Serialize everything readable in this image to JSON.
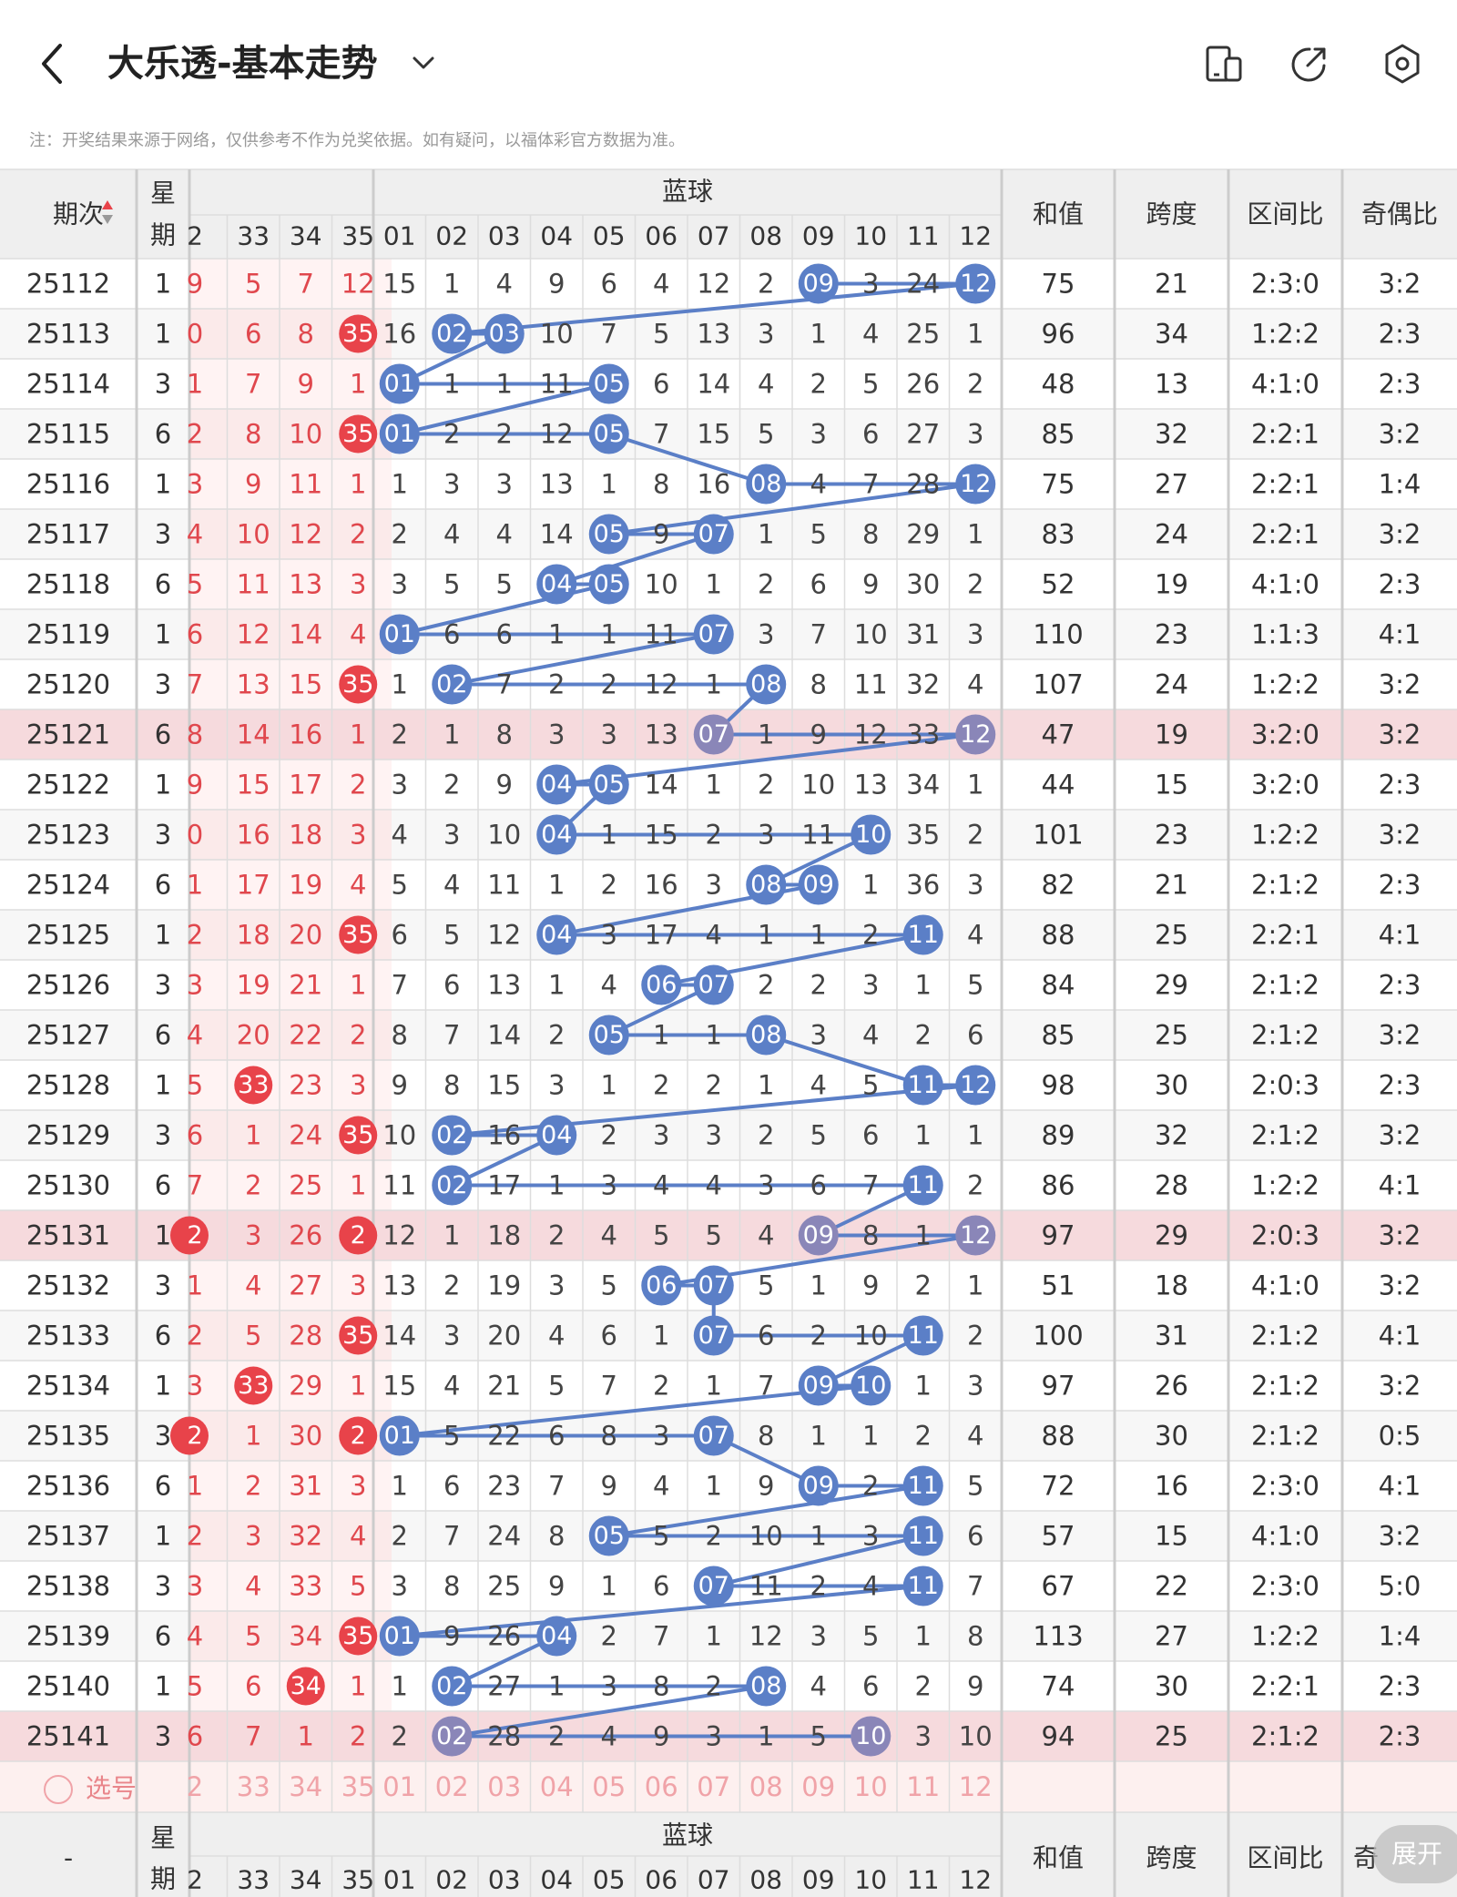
{
  "header": {
    "title": "大乐透-基本走势",
    "icons": [
      "back-arrow-icon",
      "chevron-down-icon",
      "device-icon",
      "share-icon",
      "settings-icon"
    ]
  },
  "note": "注：开奖结果来源于网络，仅供参考不作为兑奖依据。如有疑问，以福体彩官方数据为准。",
  "table": {
    "headers": {
      "period": "期次",
      "weekday_1": "星",
      "weekday_2": "期",
      "blue_group": "蓝球",
      "sum": "和值",
      "span": "跨度",
      "zone_ratio": "区间比",
      "odd_even_ratio": "奇偶比"
    },
    "front_columns": [
      "2",
      "33",
      "34",
      "35"
    ],
    "blue_columns": [
      "01",
      "02",
      "03",
      "04",
      "05",
      "06",
      "07",
      "08",
      "09",
      "10",
      "11",
      "12"
    ],
    "rows": [
      {
        "period": "25112",
        "week": "1",
        "front": [
          "9",
          "5",
          "7",
          "12"
        ],
        "front_hit": [],
        "blue": [
          "15",
          "1",
          "4",
          "9",
          "6",
          "4",
          "12",
          "2",
          "09",
          "3",
          "24",
          "12"
        ],
        "blue_hit": [
          9,
          12
        ],
        "sum": "75",
        "span": "21",
        "zone": "2:3:0",
        "oe": "3:2",
        "highlight": false
      },
      {
        "period": "25113",
        "week": "1",
        "front": [
          "0",
          "6",
          "8",
          "35"
        ],
        "front_hit": [
          35
        ],
        "blue": [
          "16",
          "02",
          "03",
          "10",
          "7",
          "5",
          "13",
          "3",
          "1",
          "4",
          "25",
          "1"
        ],
        "blue_hit": [
          2,
          3
        ],
        "sum": "96",
        "span": "34",
        "zone": "1:2:2",
        "oe": "2:3",
        "highlight": false
      },
      {
        "period": "25114",
        "week": "3",
        "front": [
          "1",
          "7",
          "9",
          "1"
        ],
        "front_hit": [],
        "blue": [
          "01",
          "1",
          "1",
          "11",
          "05",
          "6",
          "14",
          "4",
          "2",
          "5",
          "26",
          "2"
        ],
        "blue_hit": [
          1,
          5
        ],
        "sum": "48",
        "span": "13",
        "zone": "4:1:0",
        "oe": "2:3",
        "highlight": false
      },
      {
        "period": "25115",
        "week": "6",
        "front": [
          "2",
          "8",
          "10",
          "35"
        ],
        "front_hit": [
          35
        ],
        "blue": [
          "01",
          "2",
          "2",
          "12",
          "05",
          "7",
          "15",
          "5",
          "3",
          "6",
          "27",
          "3"
        ],
        "blue_hit": [
          1,
          5
        ],
        "sum": "85",
        "span": "32",
        "zone": "2:2:1",
        "oe": "3:2",
        "highlight": false
      },
      {
        "period": "25116",
        "week": "1",
        "front": [
          "3",
          "9",
          "11",
          "1"
        ],
        "front_hit": [],
        "blue": [
          "1",
          "3",
          "3",
          "13",
          "1",
          "8",
          "16",
          "08",
          "4",
          "7",
          "28",
          "12"
        ],
        "blue_hit": [
          8,
          12
        ],
        "sum": "75",
        "span": "27",
        "zone": "2:2:1",
        "oe": "1:4",
        "highlight": false
      },
      {
        "period": "25117",
        "week": "3",
        "front": [
          "4",
          "10",
          "12",
          "2"
        ],
        "front_hit": [],
        "blue": [
          "2",
          "4",
          "4",
          "14",
          "05",
          "9",
          "07",
          "1",
          "5",
          "8",
          "29",
          "1"
        ],
        "blue_hit": [
          5,
          7
        ],
        "sum": "83",
        "span": "24",
        "zone": "2:2:1",
        "oe": "3:2",
        "highlight": false
      },
      {
        "period": "25118",
        "week": "6",
        "front": [
          "5",
          "11",
          "13",
          "3"
        ],
        "front_hit": [],
        "blue": [
          "3",
          "5",
          "5",
          "04",
          "05",
          "10",
          "1",
          "2",
          "6",
          "9",
          "30",
          "2"
        ],
        "blue_hit": [
          4,
          5
        ],
        "sum": "52",
        "span": "19",
        "zone": "4:1:0",
        "oe": "2:3",
        "highlight": false
      },
      {
        "period": "25119",
        "week": "1",
        "front": [
          "6",
          "12",
          "14",
          "4"
        ],
        "front_hit": [],
        "blue": [
          "01",
          "6",
          "6",
          "1",
          "1",
          "11",
          "07",
          "3",
          "7",
          "10",
          "31",
          "3"
        ],
        "blue_hit": [
          1,
          7
        ],
        "sum": "110",
        "span": "23",
        "zone": "1:1:3",
        "oe": "4:1",
        "highlight": false
      },
      {
        "period": "25120",
        "week": "3",
        "front": [
          "7",
          "13",
          "15",
          "35"
        ],
        "front_hit": [
          35
        ],
        "blue": [
          "1",
          "02",
          "7",
          "2",
          "2",
          "12",
          "1",
          "08",
          "8",
          "11",
          "32",
          "4"
        ],
        "blue_hit": [
          2,
          8
        ],
        "sum": "107",
        "span": "24",
        "zone": "1:2:2",
        "oe": "3:2",
        "highlight": false
      },
      {
        "period": "25121",
        "week": "6",
        "front": [
          "8",
          "14",
          "16",
          "1"
        ],
        "front_hit": [],
        "blue": [
          "2",
          "1",
          "8",
          "3",
          "3",
          "13",
          "07",
          "1",
          "9",
          "12",
          "33",
          "12"
        ],
        "blue_hit": [
          7,
          12
        ],
        "sum": "47",
        "span": "19",
        "zone": "3:2:0",
        "oe": "3:2",
        "highlight": true
      },
      {
        "period": "25122",
        "week": "1",
        "front": [
          "9",
          "15",
          "17",
          "2"
        ],
        "front_hit": [],
        "blue": [
          "3",
          "2",
          "9",
          "04",
          "05",
          "14",
          "1",
          "2",
          "10",
          "13",
          "34",
          "1"
        ],
        "blue_hit": [
          4,
          5
        ],
        "sum": "44",
        "span": "15",
        "zone": "3:2:0",
        "oe": "2:3",
        "highlight": false
      },
      {
        "period": "25123",
        "week": "3",
        "front": [
          "0",
          "16",
          "18",
          "3"
        ],
        "front_hit": [],
        "blue": [
          "4",
          "3",
          "10",
          "04",
          "1",
          "15",
          "2",
          "3",
          "11",
          "10",
          "35",
          "2"
        ],
        "blue_hit": [
          4,
          10
        ],
        "sum": "101",
        "span": "23",
        "zone": "1:2:2",
        "oe": "3:2",
        "highlight": false
      },
      {
        "period": "25124",
        "week": "6",
        "front": [
          "1",
          "17",
          "19",
          "4"
        ],
        "front_hit": [],
        "blue": [
          "5",
          "4",
          "11",
          "1",
          "2",
          "16",
          "3",
          "08",
          "09",
          "1",
          "36",
          "3"
        ],
        "blue_hit": [
          8,
          9
        ],
        "sum": "82",
        "span": "21",
        "zone": "2:1:2",
        "oe": "2:3",
        "highlight": false
      },
      {
        "period": "25125",
        "week": "1",
        "front": [
          "2",
          "18",
          "20",
          "35"
        ],
        "front_hit": [
          35
        ],
        "blue": [
          "6",
          "5",
          "12",
          "04",
          "3",
          "17",
          "4",
          "1",
          "1",
          "2",
          "11",
          "4"
        ],
        "blue_hit": [
          4,
          11
        ],
        "sum": "88",
        "span": "25",
        "zone": "2:2:1",
        "oe": "4:1",
        "highlight": false
      },
      {
        "period": "25126",
        "week": "3",
        "front": [
          "3",
          "19",
          "21",
          "1"
        ],
        "front_hit": [],
        "blue": [
          "7",
          "6",
          "13",
          "1",
          "4",
          "06",
          "07",
          "2",
          "2",
          "3",
          "1",
          "5"
        ],
        "blue_hit": [
          6,
          7
        ],
        "sum": "84",
        "span": "29",
        "zone": "2:1:2",
        "oe": "2:3",
        "highlight": false
      },
      {
        "period": "25127",
        "week": "6",
        "front": [
          "4",
          "20",
          "22",
          "2"
        ],
        "front_hit": [],
        "blue": [
          "8",
          "7",
          "14",
          "2",
          "05",
          "1",
          "1",
          "08",
          "3",
          "4",
          "2",
          "6"
        ],
        "blue_hit": [
          5,
          8
        ],
        "sum": "85",
        "span": "25",
        "zone": "2:1:2",
        "oe": "3:2",
        "highlight": false
      },
      {
        "period": "25128",
        "week": "1",
        "front": [
          "5",
          "33",
          "23",
          "3"
        ],
        "front_hit": [
          33
        ],
        "blue": [
          "9",
          "8",
          "15",
          "3",
          "1",
          "2",
          "2",
          "1",
          "4",
          "5",
          "11",
          "12"
        ],
        "blue_hit": [
          11,
          12
        ],
        "sum": "98",
        "span": "30",
        "zone": "2:0:3",
        "oe": "2:3",
        "highlight": false
      },
      {
        "period": "25129",
        "week": "3",
        "front": [
          "6",
          "1",
          "24",
          "35"
        ],
        "front_hit": [
          35
        ],
        "blue": [
          "10",
          "02",
          "16",
          "04",
          "2",
          "3",
          "3",
          "2",
          "5",
          "6",
          "1",
          "1"
        ],
        "blue_hit": [
          2,
          4
        ],
        "sum": "89",
        "span": "32",
        "zone": "2:1:2",
        "oe": "3:2",
        "highlight": false
      },
      {
        "period": "25130",
        "week": "6",
        "front": [
          "7",
          "2",
          "25",
          "1"
        ],
        "front_hit": [],
        "blue": [
          "11",
          "02",
          "17",
          "1",
          "3",
          "4",
          "4",
          "3",
          "6",
          "7",
          "11",
          "2"
        ],
        "blue_hit": [
          2,
          11
        ],
        "sum": "86",
        "span": "28",
        "zone": "1:2:2",
        "oe": "4:1",
        "highlight": false
      },
      {
        "period": "25131",
        "week": "1",
        "front": [
          "2",
          "3",
          "26",
          "2"
        ],
        "front_hit": [
          2
        ],
        "blue": [
          "12",
          "1",
          "18",
          "2",
          "4",
          "5",
          "5",
          "4",
          "09",
          "8",
          "1",
          "12"
        ],
        "blue_hit": [
          9,
          12
        ],
        "sum": "97",
        "span": "29",
        "zone": "2:0:3",
        "oe": "3:2",
        "highlight": true
      },
      {
        "period": "25132",
        "week": "3",
        "front": [
          "1",
          "4",
          "27",
          "3"
        ],
        "front_hit": [],
        "blue": [
          "13",
          "2",
          "19",
          "3",
          "5",
          "06",
          "07",
          "5",
          "1",
          "9",
          "2",
          "1"
        ],
        "blue_hit": [
          6,
          7
        ],
        "sum": "51",
        "span": "18",
        "zone": "4:1:0",
        "oe": "3:2",
        "highlight": false
      },
      {
        "period": "25133",
        "week": "6",
        "front": [
          "2",
          "5",
          "28",
          "35"
        ],
        "front_hit": [
          35
        ],
        "blue": [
          "14",
          "3",
          "20",
          "4",
          "6",
          "1",
          "07",
          "6",
          "2",
          "10",
          "11",
          "2"
        ],
        "blue_hit": [
          7,
          11
        ],
        "sum": "100",
        "span": "31",
        "zone": "2:1:2",
        "oe": "4:1",
        "highlight": false
      },
      {
        "period": "25134",
        "week": "1",
        "front": [
          "3",
          "33",
          "29",
          "1"
        ],
        "front_hit": [
          33
        ],
        "blue": [
          "15",
          "4",
          "21",
          "5",
          "7",
          "2",
          "1",
          "7",
          "09",
          "10",
          "1",
          "3"
        ],
        "blue_hit": [
          9,
          10
        ],
        "sum": "97",
        "span": "26",
        "zone": "2:1:2",
        "oe": "3:2",
        "highlight": false
      },
      {
        "period": "25135",
        "week": "3",
        "front": [
          "2",
          "1",
          "30",
          "2"
        ],
        "front_hit": [
          2
        ],
        "blue": [
          "01",
          "5",
          "22",
          "6",
          "8",
          "3",
          "07",
          "8",
          "1",
          "1",
          "2",
          "4"
        ],
        "blue_hit": [
          1,
          7
        ],
        "sum": "88",
        "span": "30",
        "zone": "2:1:2",
        "oe": "0:5",
        "highlight": false
      },
      {
        "period": "25136",
        "week": "6",
        "front": [
          "1",
          "2",
          "31",
          "3"
        ],
        "front_hit": [],
        "blue": [
          "1",
          "6",
          "23",
          "7",
          "9",
          "4",
          "1",
          "9",
          "09",
          "2",
          "11",
          "5"
        ],
        "blue_hit": [
          9,
          11
        ],
        "sum": "72",
        "span": "16",
        "zone": "2:3:0",
        "oe": "4:1",
        "highlight": false
      },
      {
        "period": "25137",
        "week": "1",
        "front": [
          "2",
          "3",
          "32",
          "4"
        ],
        "front_hit": [],
        "blue": [
          "2",
          "7",
          "24",
          "8",
          "05",
          "5",
          "2",
          "10",
          "1",
          "3",
          "11",
          "6"
        ],
        "blue_hit": [
          5,
          11
        ],
        "sum": "57",
        "span": "15",
        "zone": "4:1:0",
        "oe": "3:2",
        "highlight": false
      },
      {
        "period": "25138",
        "week": "3",
        "front": [
          "3",
          "4",
          "33",
          "5"
        ],
        "front_hit": [],
        "blue": [
          "3",
          "8",
          "25",
          "9",
          "1",
          "6",
          "07",
          "11",
          "2",
          "4",
          "11",
          "7"
        ],
        "blue_hit": [
          7,
          11
        ],
        "sum": "67",
        "span": "22",
        "zone": "2:3:0",
        "oe": "5:0",
        "highlight": false
      },
      {
        "period": "25139",
        "week": "6",
        "front": [
          "4",
          "5",
          "34",
          "35"
        ],
        "front_hit": [
          35
        ],
        "blue": [
          "01",
          "9",
          "26",
          "04",
          "2",
          "7",
          "1",
          "12",
          "3",
          "5",
          "1",
          "8"
        ],
        "blue_hit": [
          1,
          4
        ],
        "sum": "113",
        "span": "27",
        "zone": "1:2:2",
        "oe": "1:4",
        "highlight": false
      },
      {
        "period": "25140",
        "week": "1",
        "front": [
          "5",
          "6",
          "34",
          "1"
        ],
        "front_hit": [
          34
        ],
        "blue": [
          "1",
          "02",
          "27",
          "1",
          "3",
          "8",
          "2",
          "08",
          "4",
          "6",
          "2",
          "9"
        ],
        "blue_hit": [
          2,
          8
        ],
        "sum": "74",
        "span": "30",
        "zone": "2:2:1",
        "oe": "2:3",
        "highlight": false
      },
      {
        "period": "25141",
        "week": "3",
        "front": [
          "6",
          "7",
          "1",
          "2"
        ],
        "front_hit": [],
        "blue": [
          "2",
          "02",
          "28",
          "2",
          "4",
          "9",
          "3",
          "1",
          "5",
          "10",
          "3",
          "10"
        ],
        "blue_hit": [
          2,
          10
        ],
        "sum": "94",
        "span": "25",
        "zone": "2:1:2",
        "oe": "2:3",
        "highlight": true
      }
    ],
    "select_row": {
      "label": "选号",
      "front": [
        "2",
        "33",
        "34",
        "35"
      ],
      "blue": [
        "01",
        "02",
        "03",
        "04",
        "05",
        "06",
        "07",
        "08",
        "09",
        "10",
        "11",
        "12"
      ]
    },
    "footer": {
      "period": "-",
      "weekday_1": "星",
      "weekday_2": "期",
      "blue_group": "蓝球",
      "sum": "和值",
      "span": "跨度",
      "zone_ratio": "区间比",
      "odd_even_ratio": "奇"
    }
  },
  "expand_button": "展开",
  "colors": {
    "red_ball": "#e8434a",
    "blue_ball": "#5b7fc7",
    "highlight_row": "#f6dadd",
    "header_bg": "#efefef",
    "red_text": "#e0474d"
  }
}
